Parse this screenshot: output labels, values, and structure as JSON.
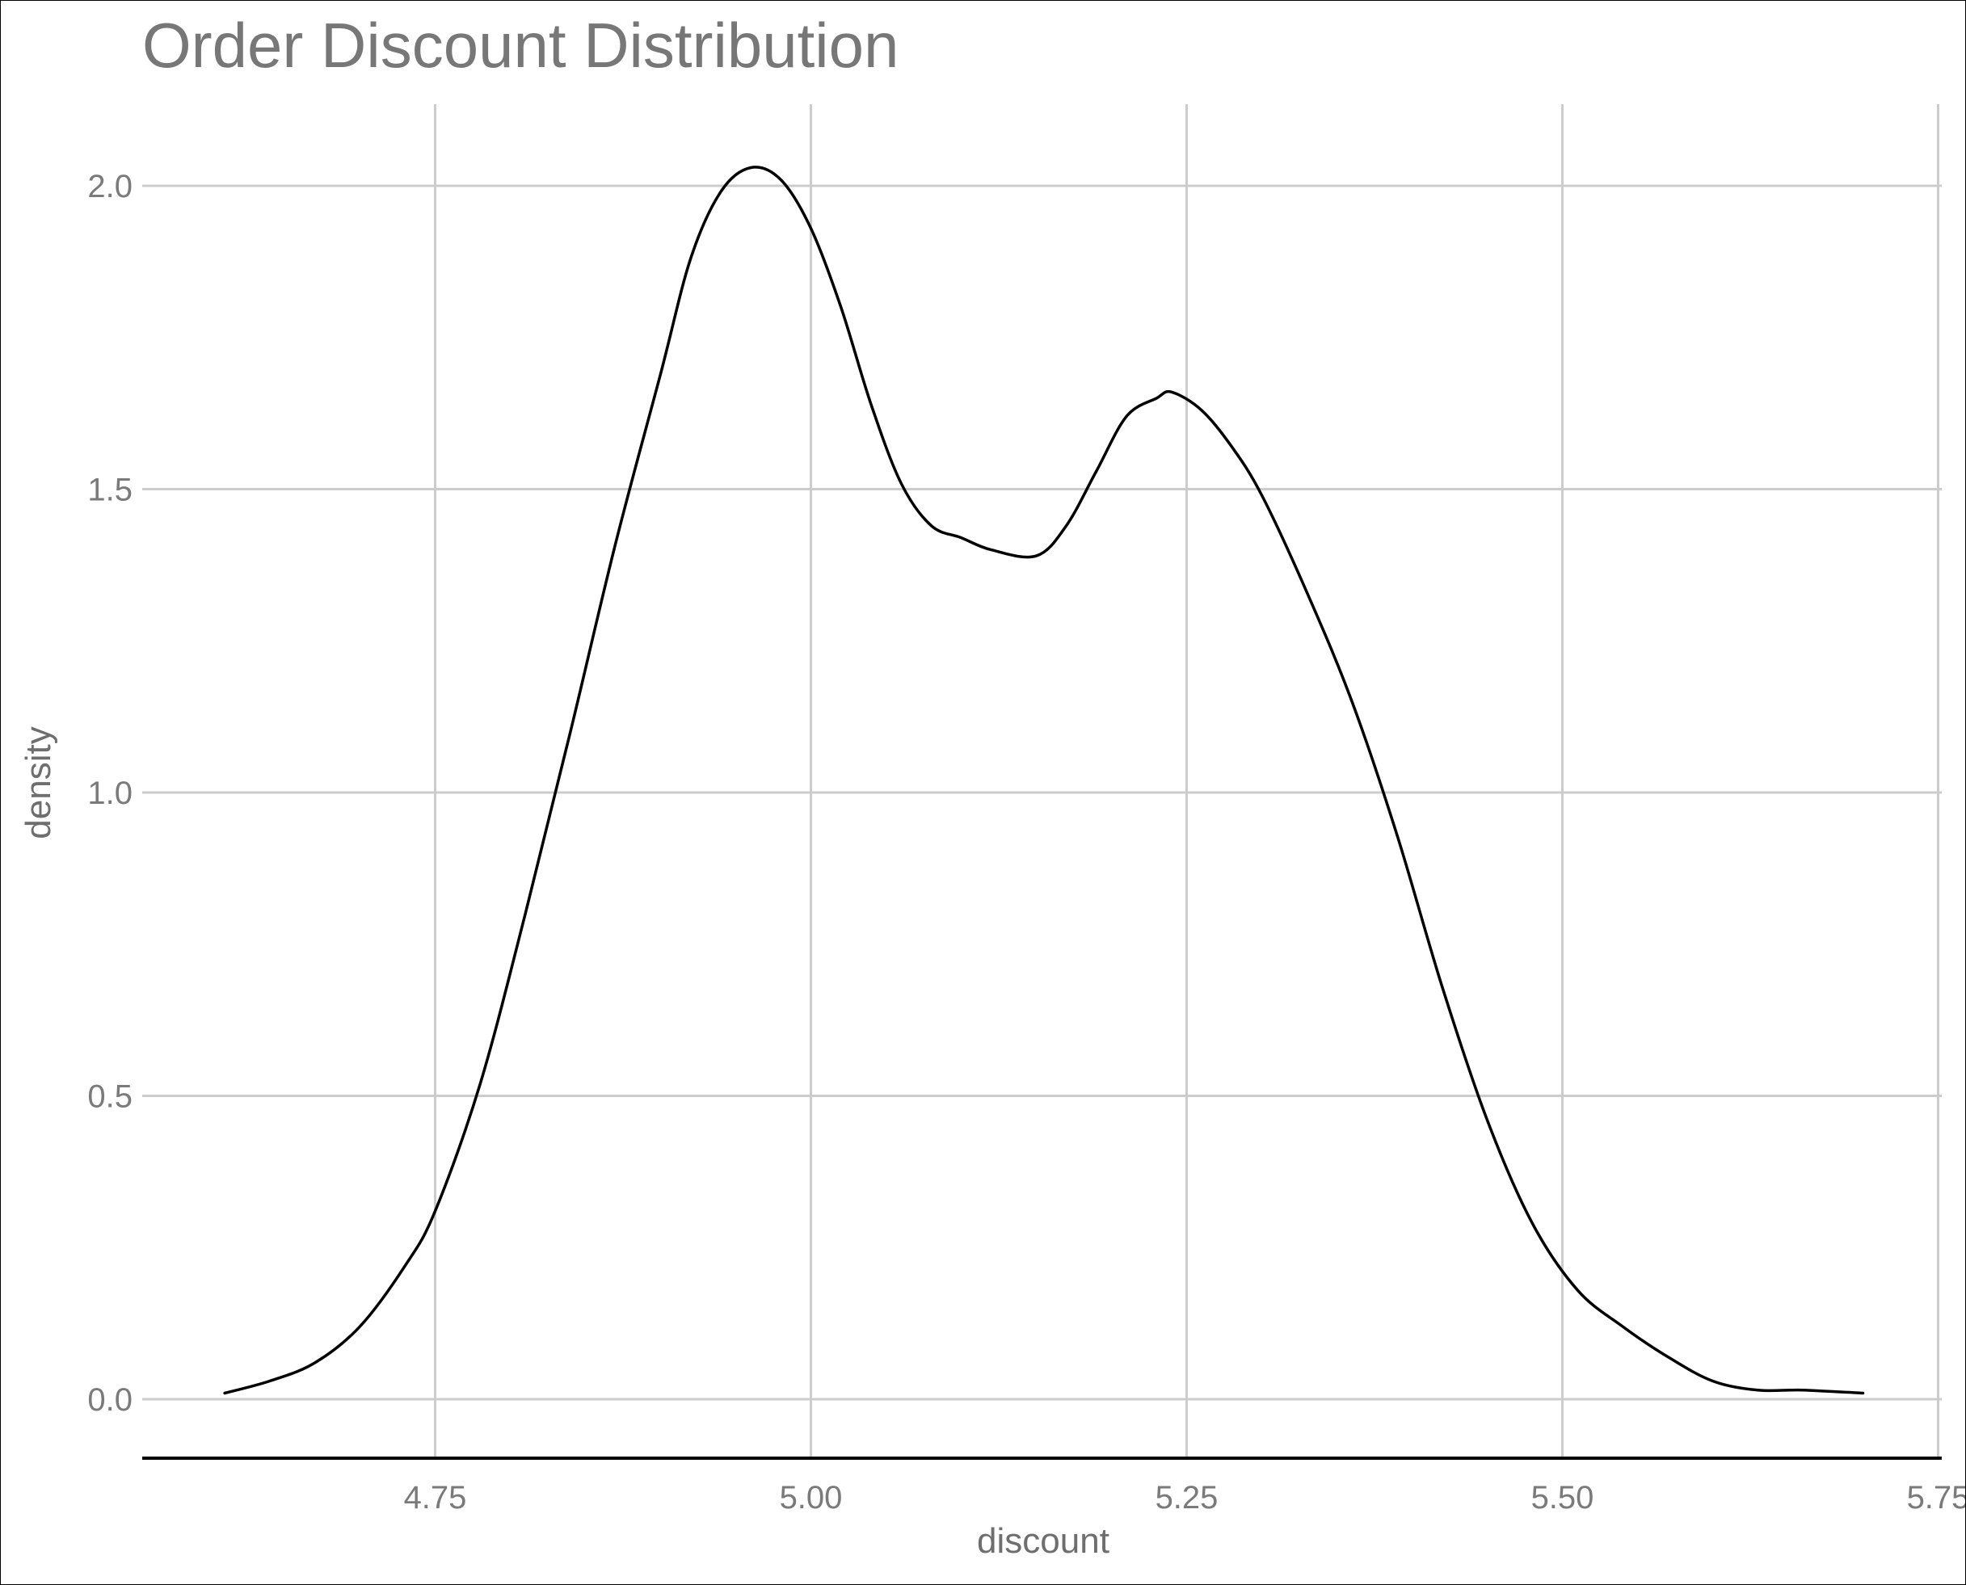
{
  "chart_data": {
    "type": "line",
    "title": "Order Discount Distribution",
    "xlabel": "discount",
    "ylabel": "density",
    "xlim": [
      4.555,
      5.75
    ],
    "ylim": [
      -0.1,
      2.13
    ],
    "x_ticks": [
      4.75,
      5.0,
      5.25,
      5.5,
      5.75
    ],
    "x_tick_labels": [
      "4.75",
      "5.00",
      "5.25",
      "5.50",
      "5.75"
    ],
    "y_ticks": [
      0.0,
      0.5,
      1.0,
      1.5,
      2.0
    ],
    "y_tick_labels": [
      "0.0",
      "0.5",
      "1.0",
      "1.5",
      "2.0"
    ],
    "grid": true,
    "series": [
      {
        "x": [
          4.61,
          4.64,
          4.67,
          4.7,
          4.73,
          4.75,
          4.78,
          4.81,
          4.84,
          4.87,
          4.9,
          4.92,
          4.94,
          4.96,
          4.98,
          5.0,
          5.02,
          5.04,
          5.06,
          5.08,
          5.1,
          5.12,
          5.15,
          5.17,
          5.19,
          5.21,
          5.23,
          5.24,
          5.26,
          5.28,
          5.3,
          5.33,
          5.36,
          5.39,
          5.42,
          5.45,
          5.48,
          5.51,
          5.54,
          5.57,
          5.6,
          5.63,
          5.66,
          5.7
        ],
        "y": [
          0.01,
          0.03,
          0.06,
          0.12,
          0.22,
          0.31,
          0.52,
          0.8,
          1.1,
          1.41,
          1.69,
          1.88,
          1.99,
          2.03,
          2.01,
          1.93,
          1.8,
          1.64,
          1.51,
          1.44,
          1.42,
          1.4,
          1.39,
          1.44,
          1.53,
          1.62,
          1.65,
          1.66,
          1.63,
          1.57,
          1.49,
          1.33,
          1.15,
          0.93,
          0.68,
          0.46,
          0.29,
          0.18,
          0.12,
          0.07,
          0.03,
          0.015,
          0.015,
          0.01
        ]
      }
    ]
  }
}
